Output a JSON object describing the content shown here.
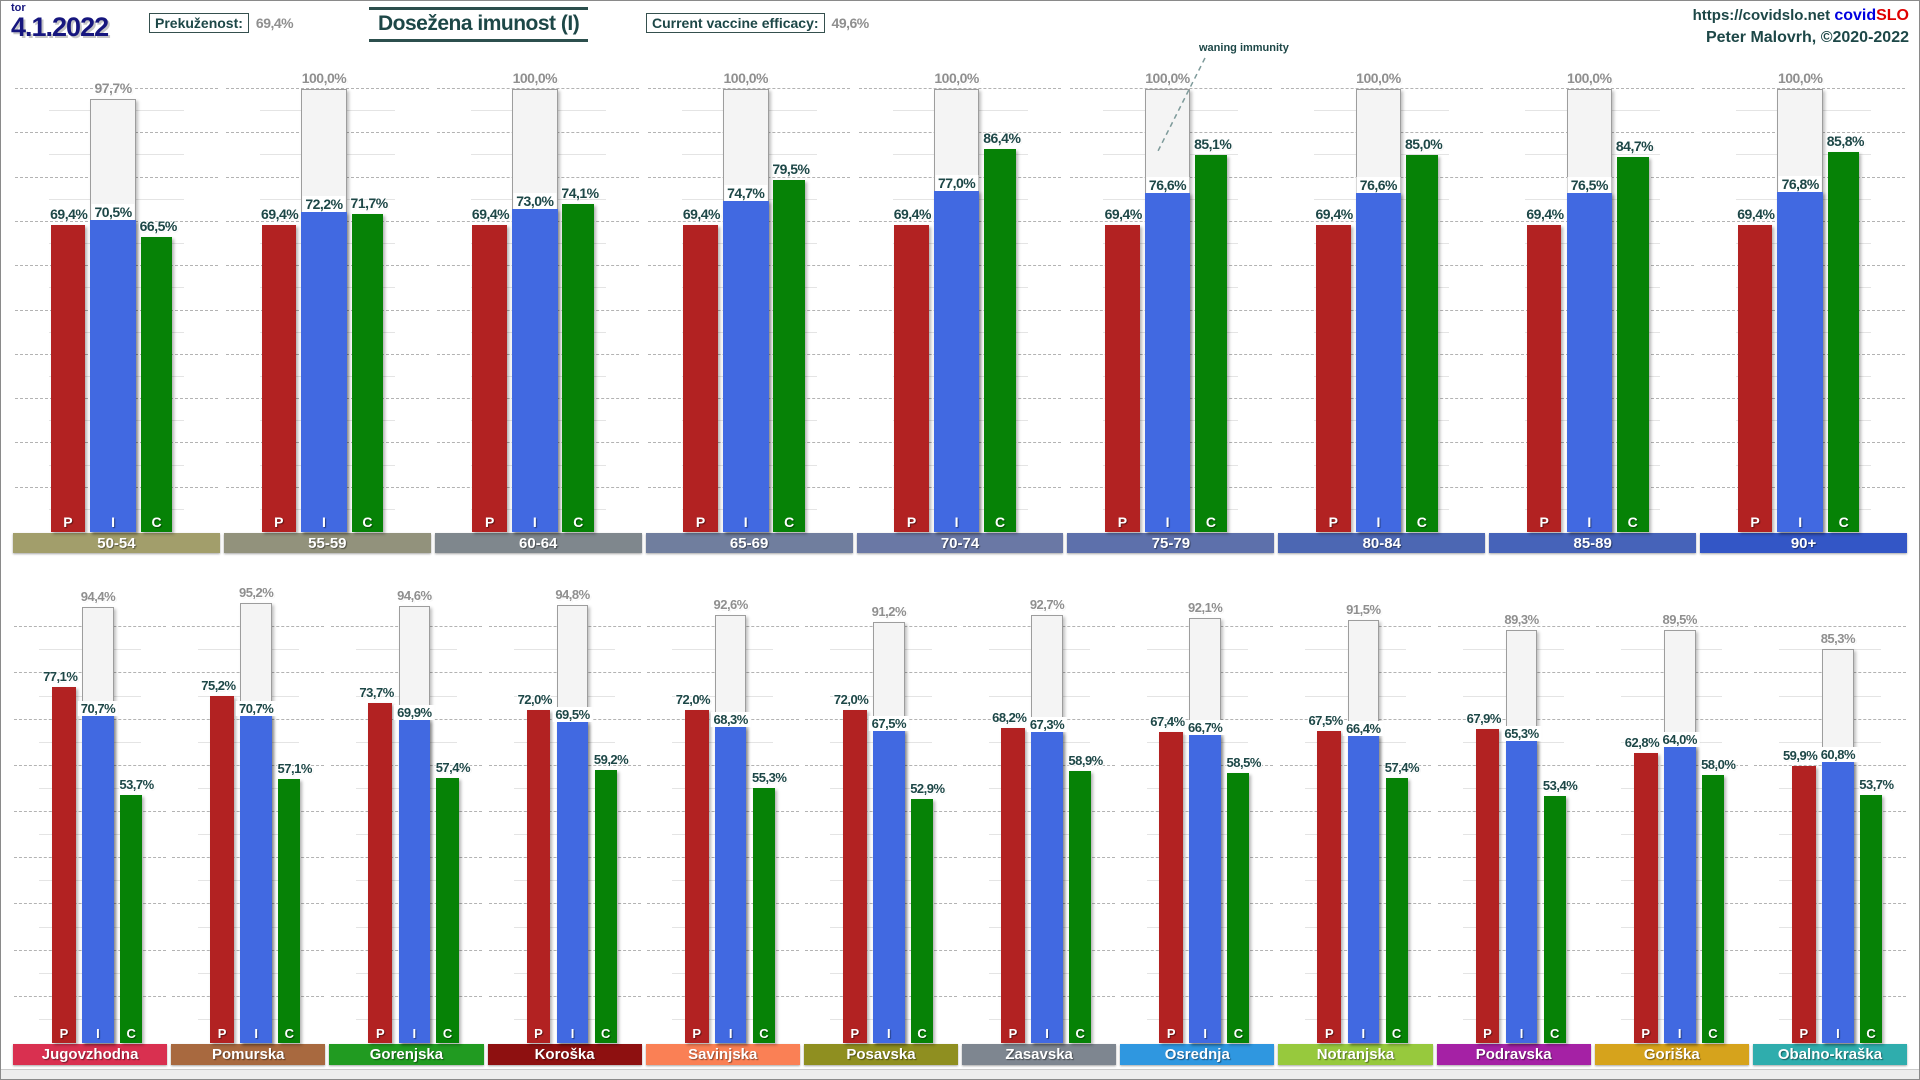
{
  "header": {
    "date_weekday": "tor",
    "date": "4.1.2022",
    "prevalence_label": "Prekuženost:",
    "prevalence_value": "69,4%",
    "title": "Dosežena imunost (I)",
    "efficacy_label": "Current vaccine efficacy:",
    "efficacy_value": "49,6%",
    "site_url": "https://covidslo.net",
    "brand_covid": "covid",
    "brand_slo": "SLO",
    "credit": "Peter Malovrh, ©2020-2022"
  },
  "annotation": {
    "waning_label": "waning immunity"
  },
  "legend": {
    "p": "P",
    "i": "I",
    "c": "C"
  },
  "colors": {
    "bar_p": "#b22222",
    "bar_i": "#4169e1",
    "bar_c": "#068206",
    "potential_fill": "#f4f4f4",
    "potential_border": "#9d9d9d",
    "label_dark": "#1d4747",
    "label_gray": "#8f8f8f"
  },
  "chart_data": {
    "type": "bar",
    "title": "Dosežena imunost (I)",
    "units": "%",
    "ylim": [
      0,
      100
    ],
    "grid": "dashed horizontal every 10%",
    "series_legend": [
      "P",
      "I",
      "C",
      "potential (white outline)"
    ],
    "age_groups": [
      {
        "label": "50-54",
        "band_color": "#a29e6b",
        "values": {
          "potential": 97.7,
          "p": 69.4,
          "i": 70.5,
          "c": 66.5
        },
        "display": {
          "potential": "97,7%",
          "p": "69,4%",
          "i": "70,5%",
          "c": "66,5%"
        }
      },
      {
        "label": "55-59",
        "band_color": "#92927c",
        "values": {
          "potential": 100.0,
          "p": 69.4,
          "i": 72.2,
          "c": 71.7
        },
        "display": {
          "potential": "100,0%",
          "p": "69,4%",
          "i": "72,2%",
          "c": "71,7%"
        }
      },
      {
        "label": "60-64",
        "band_color": "#7f878d",
        "values": {
          "potential": 100.0,
          "p": 69.4,
          "i": 73.0,
          "c": 74.1
        },
        "display": {
          "potential": "100,0%",
          "p": "69,4%",
          "i": "73,0%",
          "c": "74,1%"
        }
      },
      {
        "label": "65-69",
        "band_color": "#707e9e",
        "values": {
          "potential": 100.0,
          "p": 69.4,
          "i": 74.7,
          "c": 79.5
        },
        "display": {
          "potential": "100,0%",
          "p": "69,4%",
          "i": "74,7%",
          "c": "79,5%"
        }
      },
      {
        "label": "70-74",
        "band_color": "#6a78a5",
        "values": {
          "potential": 100.0,
          "p": 69.4,
          "i": 77.0,
          "c": 86.4
        },
        "display": {
          "potential": "100,0%",
          "p": "69,4%",
          "i": "77,0%",
          "c": "86,4%"
        }
      },
      {
        "label": "75-79",
        "band_color": "#5d70ab",
        "values": {
          "potential": 100.0,
          "p": 69.4,
          "i": 76.6,
          "c": 85.1
        },
        "display": {
          "potential": "100,0%",
          "p": "69,4%",
          "i": "76,6%",
          "c": "85,1%"
        }
      },
      {
        "label": "80-84",
        "band_color": "#4c67b3",
        "values": {
          "potential": 100.0,
          "p": 69.4,
          "i": 76.6,
          "c": 85.0
        },
        "display": {
          "potential": "100,0%",
          "p": "69,4%",
          "i": "76,6%",
          "c": "85,0%"
        }
      },
      {
        "label": "85-89",
        "band_color": "#4663b9",
        "values": {
          "potential": 100.0,
          "p": 69.4,
          "i": 76.5,
          "c": 84.7
        },
        "display": {
          "potential": "100,0%",
          "p": "69,4%",
          "i": "76,5%",
          "c": "84,7%"
        }
      },
      {
        "label": "90+",
        "band_color": "#3356c6",
        "values": {
          "potential": 100.0,
          "p": 69.4,
          "i": 76.8,
          "c": 85.8
        },
        "display": {
          "potential": "100,0%",
          "p": "69,4%",
          "i": "76,8%",
          "c": "85,8%"
        }
      }
    ],
    "regions": [
      {
        "label": "Jugovzhodna",
        "band_color": "#d93050",
        "values": {
          "potential": 94.4,
          "p": 77.1,
          "i": 70.7,
          "c": 53.7
        },
        "display": {
          "potential": "94,4%",
          "p": "77,1%",
          "i": "70,7%",
          "c": "53,7%"
        }
      },
      {
        "label": "Pomurska",
        "band_color": "#a8693f",
        "values": {
          "potential": 95.2,
          "p": 75.2,
          "i": 70.7,
          "c": 57.1
        },
        "display": {
          "potential": "95,2%",
          "p": "75,2%",
          "i": "70,7%",
          "c": "57,1%"
        }
      },
      {
        "label": "Gorenjska",
        "band_color": "#219b21",
        "values": {
          "potential": 94.6,
          "p": 73.7,
          "i": 69.9,
          "c": 57.4
        },
        "display": {
          "potential": "94,6%",
          "p": "73,7%",
          "i": "69,9%",
          "c": "57,4%"
        }
      },
      {
        "label": "Koroška",
        "band_color": "#8e1010",
        "values": {
          "potential": 94.8,
          "p": 72.0,
          "i": 69.5,
          "c": 59.2
        },
        "display": {
          "potential": "94,8%",
          "p": "72,0%",
          "i": "69,5%",
          "c": "59,2%"
        }
      },
      {
        "label": "Savinjska",
        "band_color": "#fa8055",
        "values": {
          "potential": 92.6,
          "p": 72.0,
          "i": 68.3,
          "c": 55.3
        },
        "display": {
          "potential": "92,6%",
          "p": "72,0%",
          "i": "68,3%",
          "c": "55,3%"
        }
      },
      {
        "label": "Posavska",
        "band_color": "#8f8f20",
        "values": {
          "potential": 91.2,
          "p": 72.0,
          "i": 67.5,
          "c": 52.9
        },
        "display": {
          "potential": "91,2%",
          "p": "72,0%",
          "i": "67,5%",
          "c": "52,9%"
        }
      },
      {
        "label": "Zasavska",
        "band_color": "#7e8690",
        "values": {
          "potential": 92.7,
          "p": 68.2,
          "i": 67.3,
          "c": 58.9
        },
        "display": {
          "potential": "92,7%",
          "p": "68,2%",
          "i": "67,3%",
          "c": "58,9%"
        }
      },
      {
        "label": "Osrednja",
        "band_color": "#2f97e0",
        "values": {
          "potential": 92.1,
          "p": 67.4,
          "i": 66.7,
          "c": 58.5
        },
        "display": {
          "potential": "92,1%",
          "p": "67,4%",
          "i": "66,7%",
          "c": "58,5%"
        }
      },
      {
        "label": "Notranjska",
        "band_color": "#97c93d",
        "values": {
          "potential": 91.5,
          "p": 67.5,
          "i": 66.4,
          "c": 57.4
        },
        "display": {
          "potential": "91,5%",
          "p": "67,5%",
          "i": "66,4%",
          "c": "57,4%"
        }
      },
      {
        "label": "Podravska",
        "band_color": "#a521a5",
        "values": {
          "potential": 89.3,
          "p": 67.9,
          "i": 65.3,
          "c": 53.4
        },
        "display": {
          "potential": "89,3%",
          "p": "67,9%",
          "i": "65,3%",
          "c": "53,4%"
        }
      },
      {
        "label": "Goriška",
        "band_color": "#d6a31c",
        "values": {
          "potential": 89.5,
          "p": 62.8,
          "i": 64.0,
          "c": 58.0
        },
        "display": {
          "potential": "89,5%",
          "p": "62,8%",
          "i": "64,0%",
          "c": "58,0%"
        }
      },
      {
        "label": "Obalno-kraška",
        "band_color": "#2fadad",
        "values": {
          "potential": 85.3,
          "p": 59.9,
          "i": 60.8,
          "c": 53.7
        },
        "display": {
          "potential": "85,3%",
          "p": "59,9%",
          "i": "60,8%",
          "c": "53,7%"
        }
      }
    ]
  }
}
